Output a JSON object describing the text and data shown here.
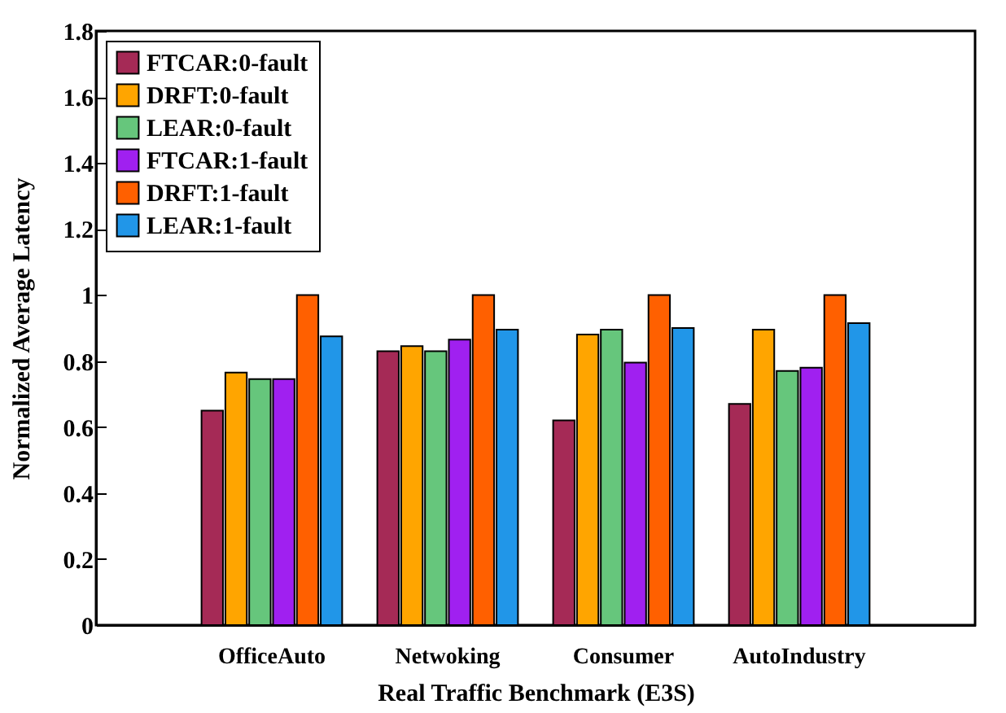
{
  "chart_data": {
    "type": "bar",
    "xlabel": "Real Traffic Benchmark (E3S)",
    "ylabel": "Normalized Average Latency",
    "categories": [
      "OfficeAuto",
      "Netwoking",
      "Consumer",
      "AutoIndustry"
    ],
    "series": [
      {
        "name": "FTCAR:0-fault",
        "color": "#a52a56",
        "values": [
          0.65,
          0.83,
          0.62,
          0.67
        ]
      },
      {
        "name": "DRFT:0-fault",
        "color": "#ffa500",
        "values": [
          0.765,
          0.845,
          0.88,
          0.895
        ]
      },
      {
        "name": "LEAR:0-fault",
        "color": "#66c67c",
        "values": [
          0.745,
          0.83,
          0.895,
          0.77
        ]
      },
      {
        "name": "FTCAR:1-fault",
        "color": "#a020f0",
        "values": [
          0.745,
          0.865,
          0.795,
          0.78
        ]
      },
      {
        "name": "DRFT:1-fault",
        "color": "#ff6000",
        "values": [
          1,
          1,
          1,
          1
        ]
      },
      {
        "name": "LEAR:1-fault",
        "color": "#2196e8",
        "values": [
          0.875,
          0.895,
          0.9,
          0.915
        ]
      }
    ],
    "ylim": [
      0,
      1.8
    ],
    "yticks": [
      0,
      0.2,
      0.4,
      0.6,
      0.8,
      1,
      1.2,
      1.4,
      1.6,
      1.8
    ],
    "grid": false,
    "legend": "top left"
  }
}
